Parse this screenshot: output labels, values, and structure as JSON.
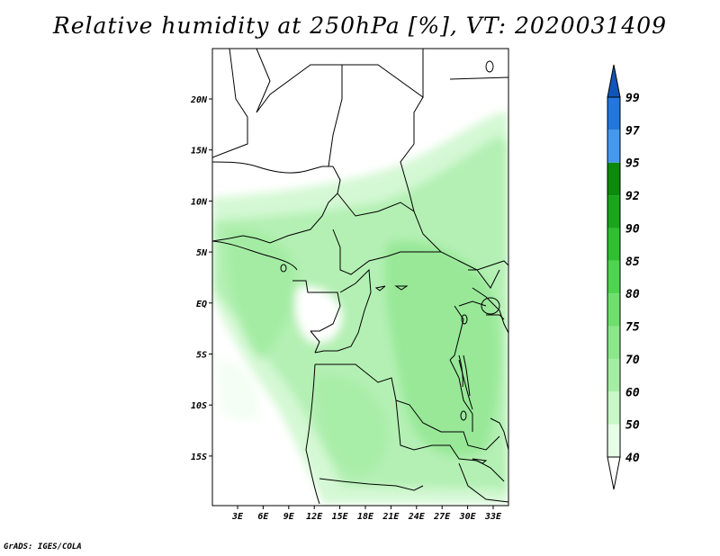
{
  "title": "Relative humidity at 250hPa [%], VT: 2020031409",
  "footer": "GrADS: IGES/COLA",
  "map": {
    "lat_ticks": [
      "20N",
      "15N",
      "10N",
      "5N",
      "EQ",
      "5S",
      "10S",
      "15S"
    ],
    "lon_ticks": [
      "3E",
      "6E",
      "9E",
      "12E",
      "15E",
      "18E",
      "21E",
      "24E",
      "27E",
      "30E",
      "33E"
    ],
    "colors": {
      "land_border": "#000000",
      "frame": "#000000"
    }
  },
  "colorbar": {
    "levels": [
      "40",
      "50",
      "60",
      "70",
      "75",
      "80",
      "85",
      "90",
      "92",
      "95",
      "97",
      "99"
    ],
    "colors": [
      "#ffffff",
      "#e6fde6",
      "#c8f7c8",
      "#a4eea4",
      "#8ae78a",
      "#6ddf6d",
      "#4fd44f",
      "#2fbf2f",
      "#1aa51a",
      "#0b8a0b",
      "#4499ee",
      "#2277dd",
      "#1155bb"
    ]
  }
}
